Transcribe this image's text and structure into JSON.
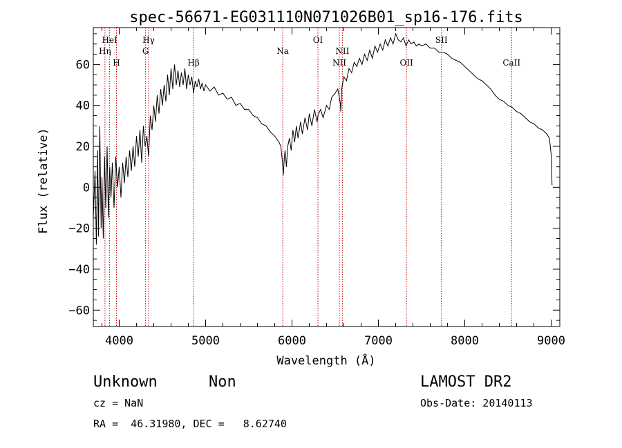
{
  "chart_data": {
    "type": "line",
    "title": "spec-56671-EG031110N071026B01_sp16-176.fits",
    "xlabel": "Wavelength (Å)",
    "ylabel": "Flux (relative)",
    "xlim": [
      3700,
      9100
    ],
    "ylim": [
      -68,
      78
    ],
    "xticks": [
      4000,
      5000,
      6000,
      7000,
      8000,
      9000
    ],
    "yticks": [
      -60,
      -40,
      -20,
      0,
      20,
      40,
      60
    ],
    "grid": false,
    "series": [
      {
        "points": [
          [
            3700,
            -15
          ],
          [
            3720,
            8
          ],
          [
            3735,
            -28
          ],
          [
            3750,
            18
          ],
          [
            3760,
            -24
          ],
          [
            3775,
            30
          ],
          [
            3790,
            -20
          ],
          [
            3800,
            5
          ],
          [
            3815,
            -25
          ],
          [
            3830,
            15
          ],
          [
            3845,
            -10
          ],
          [
            3860,
            20
          ],
          [
            3875,
            -15
          ],
          [
            3890,
            10
          ],
          [
            3905,
            -5
          ],
          [
            3920,
            12
          ],
          [
            3940,
            -10
          ],
          [
            3960,
            15
          ],
          [
            3980,
            0
          ],
          [
            4000,
            10
          ],
          [
            4020,
            -5
          ],
          [
            4040,
            12
          ],
          [
            4060,
            2
          ],
          [
            4080,
            15
          ],
          [
            4100,
            5
          ],
          [
            4120,
            18
          ],
          [
            4140,
            8
          ],
          [
            4160,
            20
          ],
          [
            4180,
            10
          ],
          [
            4200,
            25
          ],
          [
            4220,
            15
          ],
          [
            4240,
            28
          ],
          [
            4260,
            12
          ],
          [
            4280,
            30
          ],
          [
            4300,
            20
          ],
          [
            4320,
            25
          ],
          [
            4340,
            15
          ],
          [
            4360,
            35
          ],
          [
            4380,
            28
          ],
          [
            4400,
            40
          ],
          [
            4420,
            32
          ],
          [
            4440,
            45
          ],
          [
            4460,
            36
          ],
          [
            4480,
            48
          ],
          [
            4500,
            40
          ],
          [
            4520,
            50
          ],
          [
            4540,
            42
          ],
          [
            4560,
            55
          ],
          [
            4580,
            45
          ],
          [
            4600,
            58
          ],
          [
            4620,
            48
          ],
          [
            4640,
            60
          ],
          [
            4660,
            50
          ],
          [
            4680,
            57
          ],
          [
            4700,
            49
          ],
          [
            4720,
            56
          ],
          [
            4740,
            50
          ],
          [
            4760,
            58
          ],
          [
            4780,
            48
          ],
          [
            4800,
            55
          ],
          [
            4820,
            50
          ],
          [
            4840,
            54
          ],
          [
            4860,
            46
          ],
          [
            4880,
            52
          ],
          [
            4900,
            49
          ],
          [
            4920,
            53
          ],
          [
            4940,
            48
          ],
          [
            4960,
            51
          ],
          [
            4980,
            47
          ],
          [
            5000,
            50
          ],
          [
            5050,
            47
          ],
          [
            5100,
            49
          ],
          [
            5150,
            45
          ],
          [
            5200,
            46
          ],
          [
            5250,
            43
          ],
          [
            5300,
            44
          ],
          [
            5350,
            40
          ],
          [
            5400,
            41
          ],
          [
            5450,
            38
          ],
          [
            5500,
            38
          ],
          [
            5550,
            35
          ],
          [
            5600,
            34
          ],
          [
            5650,
            31
          ],
          [
            5700,
            30
          ],
          [
            5750,
            27
          ],
          [
            5800,
            25
          ],
          [
            5850,
            22
          ],
          [
            5870,
            20
          ],
          [
            5890,
            12
          ],
          [
            5900,
            6
          ],
          [
            5910,
            14
          ],
          [
            5920,
            18
          ],
          [
            5935,
            10
          ],
          [
            5950,
            20
          ],
          [
            5970,
            24
          ],
          [
            5990,
            18
          ],
          [
            6010,
            28
          ],
          [
            6030,
            22
          ],
          [
            6050,
            30
          ],
          [
            6070,
            24
          ],
          [
            6100,
            32
          ],
          [
            6120,
            26
          ],
          [
            6150,
            34
          ],
          [
            6180,
            28
          ],
          [
            6200,
            36
          ],
          [
            6230,
            30
          ],
          [
            6260,
            38
          ],
          [
            6290,
            32
          ],
          [
            6300,
            35
          ],
          [
            6330,
            38
          ],
          [
            6360,
            34
          ],
          [
            6400,
            40
          ],
          [
            6430,
            38
          ],
          [
            6460,
            44
          ],
          [
            6500,
            46
          ],
          [
            6530,
            48
          ],
          [
            6560,
            41
          ],
          [
            6565,
            37
          ],
          [
            6575,
            48
          ],
          [
            6600,
            54
          ],
          [
            6630,
            52
          ],
          [
            6660,
            58
          ],
          [
            6690,
            56
          ],
          [
            6720,
            61
          ],
          [
            6750,
            59
          ],
          [
            6780,
            63
          ],
          [
            6810,
            60
          ],
          [
            6840,
            65
          ],
          [
            6870,
            62
          ],
          [
            6900,
            67
          ],
          [
            6930,
            63
          ],
          [
            6960,
            69
          ],
          [
            6990,
            66
          ],
          [
            7020,
            70
          ],
          [
            7050,
            67
          ],
          [
            7080,
            72
          ],
          [
            7110,
            69
          ],
          [
            7140,
            73
          ],
          [
            7170,
            70
          ],
          [
            7200,
            75
          ],
          [
            7230,
            72
          ],
          [
            7260,
            71
          ],
          [
            7290,
            73
          ],
          [
            7320,
            69
          ],
          [
            7350,
            72
          ],
          [
            7380,
            70
          ],
          [
            7410,
            71
          ],
          [
            7440,
            69
          ],
          [
            7470,
            70
          ],
          [
            7500,
            69
          ],
          [
            7550,
            70
          ],
          [
            7600,
            68
          ],
          [
            7650,
            68
          ],
          [
            7700,
            66
          ],
          [
            7750,
            66
          ],
          [
            7800,
            65
          ],
          [
            7850,
            63
          ],
          [
            7900,
            62
          ],
          [
            7950,
            61
          ],
          [
            8000,
            59
          ],
          [
            8050,
            57
          ],
          [
            8100,
            55
          ],
          [
            8150,
            53
          ],
          [
            8200,
            52
          ],
          [
            8250,
            50
          ],
          [
            8300,
            48
          ],
          [
            8350,
            45
          ],
          [
            8400,
            43
          ],
          [
            8450,
            42
          ],
          [
            8500,
            40
          ],
          [
            8550,
            39
          ],
          [
            8600,
            37
          ],
          [
            8650,
            36
          ],
          [
            8700,
            34
          ],
          [
            8750,
            32
          ],
          [
            8800,
            31
          ],
          [
            8850,
            29
          ],
          [
            8900,
            28
          ],
          [
            8950,
            26
          ],
          [
            8980,
            24
          ],
          [
            9000,
            16
          ],
          [
            9010,
            1
          ]
        ]
      }
    ],
    "line_markers": [
      {
        "name": "HeI",
        "wavelength": 3889,
        "row": 1
      },
      {
        "name": "Hη",
        "wavelength": 3835,
        "row": 2
      },
      {
        "name": "H",
        "wavelength": 3968,
        "row": 3
      },
      {
        "name": "Hγ",
        "wavelength": 4340,
        "row": 1
      },
      {
        "name": "G",
        "wavelength": 4305,
        "row": 2
      },
      {
        "name": "Hβ",
        "wavelength": 4861,
        "row": 3
      },
      {
        "name": "Na",
        "wavelength": 5893,
        "row": 2
      },
      {
        "name": "OI",
        "wavelength": 6300,
        "row": 1
      },
      {
        "name": "NII",
        "wavelength": 6583,
        "row": 2
      },
      {
        "name": "NII",
        "wavelength": 6548,
        "row": 3
      },
      {
        "name": "OII",
        "wavelength": 7325,
        "row": 3
      },
      {
        "name": "SII",
        "wavelength": 7730,
        "row": 1
      },
      {
        "name": "CaII",
        "wavelength": 8542,
        "row": 3
      }
    ],
    "marker_color": "#c00000"
  },
  "info": {
    "class": "Unknown",
    "subclass": "Non",
    "survey": "LAMOST DR2",
    "cz": "cz = NaN",
    "obs_date": "Obs-Date: 20140113",
    "radec": "RA =  46.31980, DEC =   8.62740"
  }
}
